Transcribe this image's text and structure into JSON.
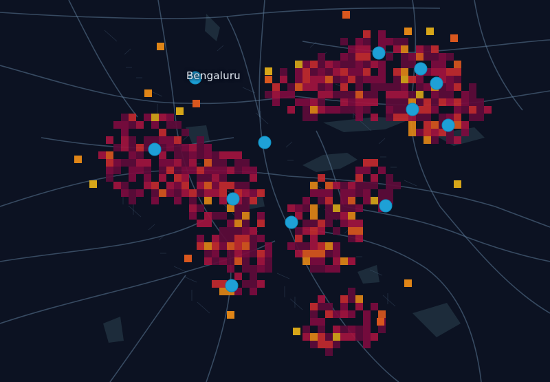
{
  "map": {
    "city_label": "Bengaluru",
    "style": "dark",
    "colors": {
      "background": "#0c1222",
      "roads": "#5b7896",
      "water": "#1d2c3b",
      "marker": "#1ea0d6",
      "heat_scale": [
        "#5e0b3a",
        "#7d0b3f",
        "#a3133f",
        "#c42a2f",
        "#d9571e",
        "#e08517",
        "#d7a619"
      ]
    },
    "heatmap_layer": {
      "type": "grid",
      "cell_unit": "km",
      "value_scale": "density"
    },
    "marker_count": 12,
    "marker_icon": "circle-marker-icon"
  }
}
